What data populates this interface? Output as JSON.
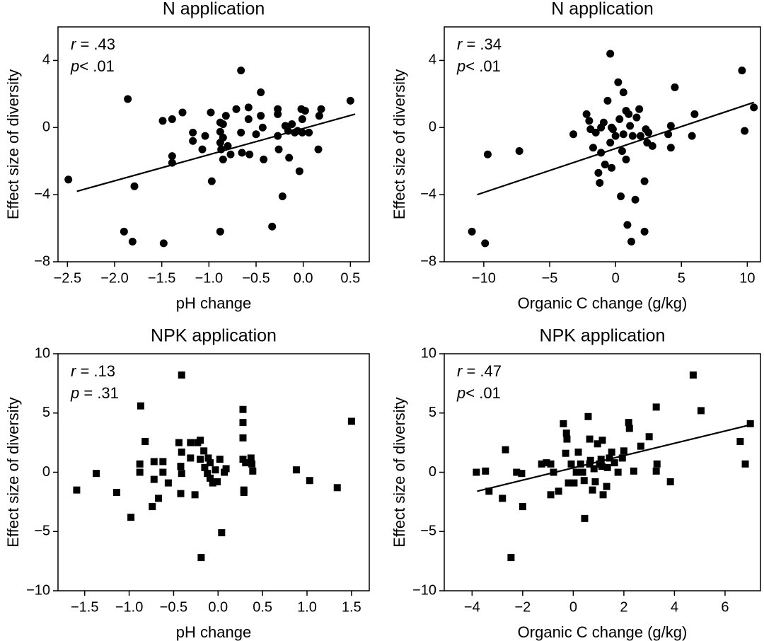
{
  "chart_data": [
    {
      "type": "scatter",
      "title": "N application",
      "xlabel": "pH change",
      "ylabel": "Effect size of diversity",
      "stats": [
        [
          "r",
          " = .43"
        ],
        [
          "p",
          "< .01"
        ]
      ],
      "marker": "circle",
      "color": "#000000",
      "xlim": [
        -2.6,
        0.7
      ],
      "ylim": [
        -8,
        6
      ],
      "xticks": [
        {
          "value": -2.5,
          "label": "−2.5"
        },
        {
          "value": -2.0,
          "label": "−2.0"
        },
        {
          "value": -1.5,
          "label": "−1.5"
        },
        {
          "value": -1.0,
          "label": "−1.0"
        },
        {
          "value": -0.5,
          "label": "−0.5"
        },
        {
          "value": 0,
          "label": "0.0"
        },
        0.5
      ],
      "yticks": [
        {
          "value": -8,
          "label": "−8"
        },
        {
          "value": -4,
          "label": "−4"
        },
        0,
        4
      ],
      "x": [
        -2.49,
        -1.86,
        -1.9,
        -1.81,
        -1.79,
        -1.49,
        -1.39,
        -1.39,
        -1.39,
        -1.28,
        -1.48,
        -1.17,
        -1.17,
        -1.07,
        -1.04,
        -0.98,
        -0.97,
        -0.88,
        -0.88,
        -0.88,
        -0.85,
        -0.88,
        -0.85,
        -0.87,
        -0.85,
        -0.82,
        -0.8,
        -0.77,
        -0.71,
        -0.66,
        -0.66,
        -0.65,
        -0.58,
        -0.58,
        -0.57,
        -0.5,
        -0.45,
        -0.45,
        -0.43,
        -0.42,
        -0.33,
        -0.27,
        -0.27,
        -0.27,
        -0.26,
        -0.22,
        -0.19,
        -0.16,
        -0.15,
        -0.12,
        -0.09,
        -0.06,
        -0.04,
        -0.02,
        -0.01,
        -0.01,
        0.02,
        0.06,
        0.16,
        0.19,
        0.17,
        0.5
      ],
      "values": [
        -3.1,
        1.7,
        -6.2,
        -6.8,
        -3.5,
        0.4,
        0.5,
        -1.7,
        -2.1,
        0.9,
        -6.9,
        -0.3,
        -0.8,
        -1.3,
        -0.5,
        0.9,
        -3.2,
        0.3,
        -0.25,
        -0.9,
        0.2,
        -6.2,
        -0.6,
        -1.3,
        -1.9,
        0.7,
        -1.1,
        -1.6,
        1.1,
        3.4,
        -0.3,
        -1.5,
        1.2,
        0.5,
        -1.6,
        -0.4,
        2.1,
        0.7,
        0.0,
        -1.9,
        -5.9,
        0.8,
        1.1,
        -0.5,
        -1.3,
        -4.1,
        0.1,
        -0.2,
        -1.8,
        0.2,
        -0.3,
        -0.2,
        -2.6,
        1.1,
        0.5,
        -0.3,
        1.0,
        -0.3,
        -1.3,
        1.1,
        0.7,
        1.6
      ],
      "trendline": {
        "x": [
          -2.4,
          0.55
        ],
        "y": [
          -3.8,
          0.8
        ]
      }
    },
    {
      "type": "scatter",
      "title": "N application",
      "xlabel": "Organic C change (g/kg)",
      "ylabel": "Effect size of diversity",
      "stats": [
        [
          "r",
          " = .34"
        ],
        [
          "p",
          "< .01"
        ]
      ],
      "marker": "circle",
      "color": "#000000",
      "xlim": [
        -13,
        11
      ],
      "ylim": [
        -8,
        6
      ],
      "xticks": [
        {
          "value": -10,
          "label": "−10"
        },
        {
          "value": -5,
          "label": "−5"
        },
        0,
        5,
        10
      ],
      "yticks": [
        {
          "value": -8,
          "label": "−8"
        },
        {
          "value": -4,
          "label": "−4"
        },
        0,
        4
      ],
      "x": [
        -10.9,
        -9.9,
        -9.7,
        -7.3,
        -3.2,
        -2.2,
        -2.0,
        -1.9,
        -1.7,
        -1.5,
        -1.3,
        -1.2,
        -1.1,
        -1.1,
        -0.9,
        -0.8,
        -0.6,
        -0.4,
        -0.4,
        -0.3,
        -0.3,
        -0.2,
        0,
        0.2,
        0.3,
        0.4,
        0.5,
        0.6,
        0.6,
        0.8,
        0.8,
        0.9,
        1.0,
        1.1,
        1.2,
        1.3,
        1.5,
        1.6,
        1.8,
        1.9,
        2.2,
        2.2,
        2.3,
        2.4,
        2.5,
        2.8,
        4.0,
        4.2,
        4.2,
        4.5,
        5.8,
        6.0,
        9.6,
        9.8,
        10.5
      ],
      "values": [
        -6.2,
        -6.9,
        -1.6,
        -1.4,
        -0.4,
        0.8,
        0.4,
        -0.1,
        -1.2,
        -0.3,
        -2.7,
        -3.3,
        -1.5,
        0,
        0.3,
        -2.2,
        1.6,
        4.4,
        -0.9,
        0.0,
        -2.4,
        -0.1,
        -0.5,
        2.7,
        0.5,
        -4.1,
        -1.4,
        2.1,
        -0.4,
        1.0,
        -1.9,
        -5.8,
        0.8,
        0.1,
        -6.8,
        -0.5,
        -4.3,
        0.6,
        1.1,
        -0.5,
        -3.2,
        -6.2,
        -0.1,
        -0.9,
        -0.3,
        -1.1,
        -0.4,
        0.1,
        -1.2,
        2.4,
        -0.5,
        0.8,
        3.4,
        -0.2,
        1.2
      ],
      "trendline": {
        "x": [
          -10.5,
          10.5
        ],
        "y": [
          -4.0,
          1.5
        ]
      }
    },
    {
      "type": "scatter",
      "title": "NPK application",
      "xlabel": "pH change",
      "ylabel": "Effect size of diversity",
      "stats": [
        [
          "r",
          " = .13"
        ],
        [
          "p",
          " = .31"
        ]
      ],
      "marker": "square",
      "color": "#000000",
      "xlim": [
        -1.8,
        1.7
      ],
      "ylim": [
        -10,
        10
      ],
      "xticks": [
        {
          "value": -1.5,
          "label": "−1.5"
        },
        {
          "value": -1.0,
          "label": "−1.0"
        },
        {
          "value": -0.5,
          "label": "−0.5"
        },
        {
          "value": 0,
          "label": "0.0"
        },
        0.5,
        {
          "value": 1,
          "label": "1.0"
        },
        1.5
      ],
      "yticks": [
        {
          "value": -10,
          "label": "−10"
        },
        {
          "value": -5,
          "label": "−5"
        },
        0,
        5,
        10
      ],
      "x": [
        -1.59,
        -1.37,
        -1.14,
        -0.98,
        -0.87,
        -0.82,
        -0.88,
        -0.88,
        -0.74,
        -0.72,
        -0.72,
        -0.67,
        -0.62,
        -0.62,
        -0.56,
        -0.44,
        -0.42,
        -0.42,
        -0.41,
        -0.41,
        -0.41,
        -0.31,
        -0.31,
        -0.26,
        -0.23,
        -0.2,
        -0.2,
        -0.19,
        -0.16,
        -0.15,
        -0.12,
        -0.11,
        -0.09,
        -0.09,
        -0.06,
        -0.03,
        -0.01,
        0.02,
        0.04,
        0.09,
        0.07,
        0.28,
        0.28,
        0.28,
        0.28,
        0.29,
        0.29,
        0.31,
        0.37,
        0.38,
        0.39,
        0.88,
        1.03,
        1.34,
        1.5
      ],
      "values": [
        -1.5,
        -0.1,
        -1.7,
        -3.8,
        5.6,
        2.6,
        0.7,
        0.0,
        -2.9,
        -0.6,
        0.9,
        -2.2,
        0.9,
        0.0,
        -0.9,
        2.5,
        0.5,
        -1.8,
        8.2,
        1.7,
        -0.1,
        2.5,
        1.2,
        -1.9,
        2.5,
        1.1,
        2.7,
        -7.2,
        1.8,
        0.4,
        -0.1,
        1.2,
        -0.5,
        0.8,
        -0.9,
        0.2,
        -0.8,
        1.1,
        -5.1,
        0.3,
        0,
        5.3,
        4.2,
        2.9,
        1.1,
        -1.5,
        -1.7,
        0.8,
        1.2,
        0.7,
        0.1,
        0.2,
        -0.7,
        -1.3,
        4.3
      ]
    },
    {
      "type": "scatter",
      "title": "NPK application",
      "xlabel": "Organic C change (g/kg)",
      "ylabel": "Effect size of diversity",
      "stats": [
        [
          "r",
          " = .47"
        ],
        [
          "p",
          "< .01"
        ]
      ],
      "marker": "square",
      "color": "#000000",
      "xlim": [
        -5.1,
        7.4
      ],
      "ylim": [
        -10,
        10
      ],
      "xticks": [
        {
          "value": -4,
          "label": "−4"
        },
        {
          "value": -2,
          "label": "−2"
        },
        0,
        2,
        4,
        6
      ],
      "yticks": [
        {
          "value": -10,
          "label": "−10"
        },
        {
          "value": -5,
          "label": "−5"
        },
        0,
        5,
        10
      ],
      "x": [
        -3.83,
        -3.47,
        -3.33,
        -2.8,
        -2.68,
        -2.46,
        -2.24,
        -2.04,
        -2.0,
        -1.25,
        -1.06,
        -0.89,
        -0.89,
        -0.78,
        -0.58,
        -0.39,
        -0.3,
        -0.27,
        -0.25,
        -0.19,
        -0.08,
        0.03,
        0.12,
        0.2,
        0.29,
        0.37,
        0.43,
        0.45,
        0.59,
        0.65,
        0.65,
        0.68,
        0.76,
        0.82,
        0.87,
        0.96,
        1.04,
        1.1,
        1.13,
        1.15,
        1.18,
        1.32,
        1.35,
        1.43,
        1.52,
        1.63,
        1.77,
        1.94,
        2.0,
        2.19,
        2.22,
        2.39,
        2.67,
        3.0,
        3.28,
        3.31,
        3.28,
        3.84,
        4.74,
        5.05,
        6.6,
        6.8,
        7.0
      ],
      "values": [
        0,
        0.1,
        -1.6,
        -2.2,
        1.9,
        -7.2,
        0,
        -0.1,
        -2.9,
        0.7,
        0.8,
        0.7,
        -1.9,
        0,
        -1.6,
        4.1,
        1.6,
        3.3,
        2.8,
        -0.9,
        0.7,
        -0.9,
        0,
        1.7,
        0.7,
        0,
        -0.7,
        -3.9,
        4.7,
        2.8,
        0.7,
        1.0,
        -1.5,
        0.3,
        -0.8,
        2.4,
        0.7,
        1.1,
        0.5,
        2.7,
        -1.9,
        -1.2,
        0.4,
        1.2,
        1.7,
        0.8,
        0,
        1.2,
        1.8,
        4.2,
        3.7,
        0.1,
        2.2,
        3.0,
        0.1,
        0.7,
        5.5,
        -0.8,
        8.2,
        5.2,
        2.6,
        0.7,
        4.1
      ],
      "trendline": {
        "x": [
          -3.8,
          7.0
        ],
        "y": [
          -1.6,
          4.0
        ]
      }
    }
  ]
}
